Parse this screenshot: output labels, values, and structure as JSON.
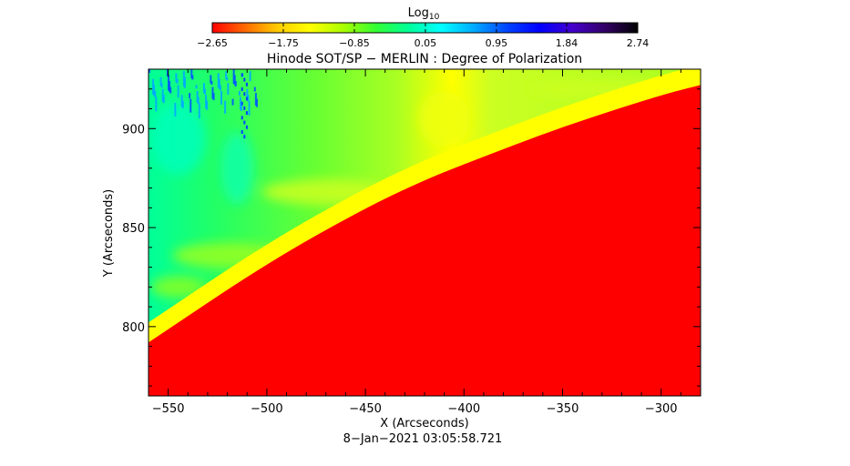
{
  "chart_data": {
    "type": "heatmap",
    "title": "Hinode SOT/SP − MERLIN : Degree of Polarization",
    "xlabel": "X (Arcseconds)",
    "ylabel": "Y (Arcseconds)",
    "footer": "8−Jan−2021 03:05:58.721",
    "xlim": [
      -560,
      -280
    ],
    "ylim": [
      765,
      930
    ],
    "x_ticks": [
      -550,
      -500,
      -450,
      -400,
      -350,
      -300
    ],
    "x_tick_labels": [
      "−550",
      "−500",
      "−450",
      "−400",
      "−350",
      "−300"
    ],
    "y_ticks": [
      800,
      850,
      900
    ],
    "y_tick_labels": [
      "800",
      "850",
      "900"
    ],
    "grid": false,
    "colorbar": {
      "label_main": "Log",
      "label_sub": "10",
      "range": [
        -2.65,
        2.74
      ],
      "ticks": [
        -2.65,
        -1.75,
        -0.85,
        0.05,
        0.95,
        1.84,
        2.74
      ],
      "tick_labels": [
        "−2.65",
        "−1.75",
        "−0.85",
        "0.05",
        "0.95",
        "1.84",
        "2.74"
      ],
      "placement": "top",
      "colormap": [
        "#ff0000",
        "#ff6a00",
        "#ffcc00",
        "#ffff00",
        "#aaff00",
        "#33ff33",
        "#00ff99",
        "#00ffff",
        "#00aaff",
        "#0044ff",
        "#0000ff",
        "#4400cc",
        "#330066",
        "#000000"
      ]
    },
    "limb_curve": {
      "x": [
        -560,
        -500,
        -450,
        -420,
        -400,
        -350,
        -300,
        -280
      ],
      "y": [
        792,
        832,
        860,
        874,
        882,
        901,
        917,
        922
      ]
    },
    "region_values": {
      "disk": -2.6,
      "limb_band": -0.9,
      "near_limb_corona": -1.4,
      "far_corona": 0.0,
      "streaks_top_left": 0.95
    }
  }
}
